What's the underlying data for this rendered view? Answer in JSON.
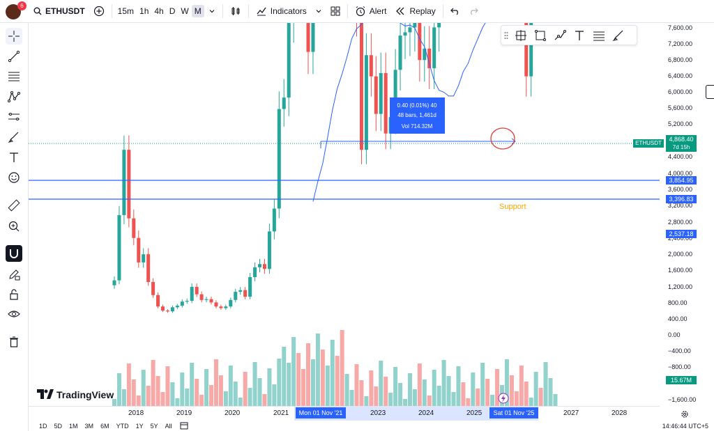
{
  "symbol": "ETHUSDT",
  "avatar_badge": "6",
  "timeframes": [
    "15m",
    "1h",
    "4h",
    "D",
    "W",
    "M"
  ],
  "active_timeframe": "M",
  "toolbar": {
    "indicators": "Indicators",
    "alert": "Alert",
    "replay": "Replay"
  },
  "y_labels": [
    "7,600.00",
    "7,200.00",
    "6,800.00",
    "6,400.00",
    "6,000.00",
    "5,600.00",
    "5,200.00",
    "4,400.00",
    "4,000.00",
    "3,600.00",
    "3,200.00",
    "2,800.00",
    "2,400.00",
    "2,000.00",
    "1,600.00",
    "1,200.00",
    "800.00",
    "400.00",
    "0.00",
    "−400.00",
    "−800.00",
    "−1,600.00"
  ],
  "price_tags": {
    "current": "4,868.40",
    "symbol_tag": "ETHUSDT",
    "countdown": "7d 15h",
    "level_high": "3,854.95",
    "level_low": "3,396.83",
    "ma": "2,537.18",
    "volume": "15.67M"
  },
  "x_labels": [
    "2018",
    "2019",
    "2020",
    "2021",
    "2023",
    "2024",
    "2025",
    "2027",
    "2028"
  ],
  "x_highlight_left": "Mon 01 Nov '21",
  "x_highlight_right": "Sat 01 Nov '25",
  "measure": {
    "line1": "0.40 (0.01%) 40",
    "line2": "48 bars, 1,461d",
    "line3": "Vol 714.32M"
  },
  "support_label": "Support",
  "logo_text": "TradingView",
  "ranges": [
    "1D",
    "5D",
    "1M",
    "3M",
    "6M",
    "YTD",
    "1Y",
    "5Y",
    "All"
  ],
  "clock": "14:46:44 UTC+5",
  "colors": {
    "up": "#26a69a",
    "down": "#ef5350",
    "line": "#2962ff",
    "accent": "#089981"
  }
}
